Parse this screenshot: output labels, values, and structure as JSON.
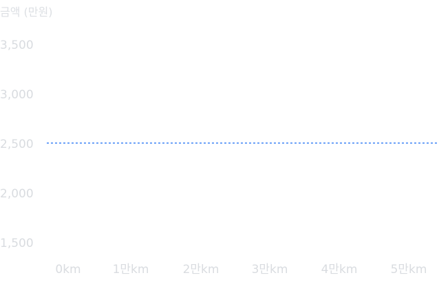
{
  "chart_data": {
    "type": "line",
    "ylabel": "금액 (만원)",
    "xlabel": "",
    "x_tick_labels": [
      "0km",
      "1만km",
      "2만km",
      "3만km",
      "4만km",
      "5만km"
    ],
    "x_values": [
      0,
      10000,
      20000,
      30000,
      40000,
      50000
    ],
    "xlim": [
      0,
      54000
    ],
    "y_tick_values": [
      1500,
      2000,
      2500,
      3000,
      3500
    ],
    "y_tick_labels": [
      "1,500",
      "2,000",
      "2,500",
      "3,000",
      "3,500"
    ],
    "ylim": [
      1500,
      3500
    ],
    "grid": false,
    "series": [
      {
        "line_style": "dotted",
        "color": "#3b82f6",
        "x": [
          0,
          54000
        ],
        "y": [
          2500,
          2500
        ]
      }
    ]
  }
}
